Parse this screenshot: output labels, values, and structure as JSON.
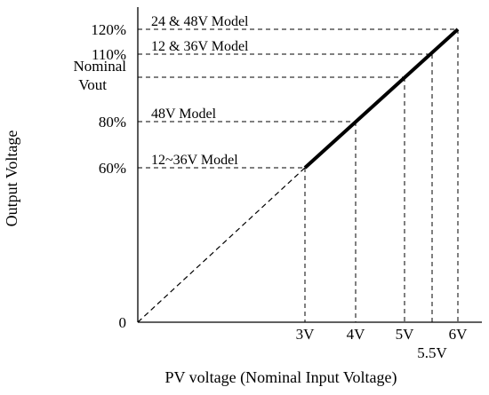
{
  "chart_data": {
    "type": "line",
    "title": "",
    "xlabel": "PV voltage (Nominal Input Voltage)",
    "ylabel": "Output Voltage",
    "grid": false,
    "legend": "none",
    "xlim": [
      0,
      6.5
    ],
    "ylim": [
      0,
      130
    ],
    "x_ticks": [
      {
        "label": "3V",
        "value": 3
      },
      {
        "label": "4V",
        "value": 4
      },
      {
        "label": "5V",
        "value": 5
      },
      {
        "label": "5.5V",
        "value": 5.5
      },
      {
        "label": "6V",
        "value": 6
      }
    ],
    "y_ticks": [
      {
        "label": "0",
        "value": 0
      },
      {
        "label": "60%",
        "value": 60
      },
      {
        "label": "80%",
        "value": 80
      },
      {
        "label": "Nominal",
        "label2": "Vout",
        "value": 100
      },
      {
        "label": "110%",
        "value": 110
      },
      {
        "label": "120%",
        "value": 120
      }
    ],
    "series": [
      {
        "style": "dashed",
        "x": [
          0,
          3
        ],
        "y": [
          0,
          60
        ]
      },
      {
        "style": "solid",
        "x": [
          3,
          6
        ],
        "y": [
          60,
          120
        ]
      }
    ],
    "annotations": [
      {
        "text": "24 & 48V Model",
        "x": 6,
        "y": 120
      },
      {
        "text": "12 & 36V Model",
        "x": 5.5,
        "y": 110
      },
      {
        "text": "48V Model",
        "x": 4,
        "y": 80
      },
      {
        "text": "12~36V Model",
        "x": 3,
        "y": 60
      }
    ],
    "guides": [
      {
        "x": 3,
        "y": 60
      },
      {
        "x": 4,
        "y": 80
      },
      {
        "x": 5,
        "y": 100
      },
      {
        "x": 5.5,
        "y": 110
      },
      {
        "x": 6,
        "y": 120
      }
    ],
    "colors": {
      "line": "#000000"
    }
  }
}
